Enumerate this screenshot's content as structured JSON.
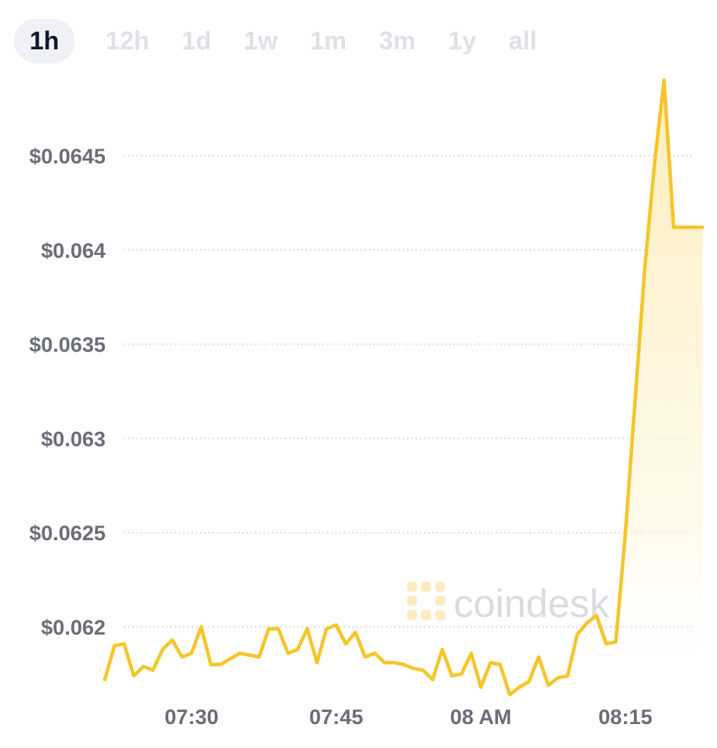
{
  "tabs": [
    {
      "label": "1h",
      "active": true
    },
    {
      "label": "12h",
      "active": false
    },
    {
      "label": "1d",
      "active": false
    },
    {
      "label": "1w",
      "active": false
    },
    {
      "label": "1m",
      "active": false
    },
    {
      "label": "3m",
      "active": false
    },
    {
      "label": "1y",
      "active": false
    },
    {
      "label": "all",
      "active": false
    }
  ],
  "watermark": "coindesk",
  "colors": {
    "line": "#f4c62c",
    "fill": "#fdf0c2",
    "grid": "#d4d6dc",
    "label": "#6b6e78"
  },
  "chart_data": {
    "type": "area",
    "x_ticks": [
      "07:30",
      "07:45",
      "08 AM",
      "08:15"
    ],
    "y_ticks": [
      "$0.0645",
      "$0.064",
      "$0.0635",
      "$0.063",
      "$0.0625",
      "$0.062"
    ],
    "y_tick_values": [
      0.0645,
      0.064,
      0.0635,
      0.063,
      0.0625,
      0.062
    ],
    "xlim": [
      "07:21",
      "08:23"
    ],
    "ylim": [
      0.06165,
      0.06492
    ],
    "grid": "horizontal-dotted",
    "x": [
      "07:21",
      "07:22",
      "07:23",
      "07:24",
      "07:25",
      "07:26",
      "07:27",
      "07:28",
      "07:29",
      "07:30",
      "07:31",
      "07:32",
      "07:33",
      "07:34",
      "07:35",
      "07:36",
      "07:37",
      "07:38",
      "07:39",
      "07:40",
      "07:41",
      "07:42",
      "07:43",
      "07:44",
      "07:45",
      "07:46",
      "07:47",
      "07:48",
      "07:49",
      "07:50",
      "07:51",
      "07:52",
      "07:53",
      "07:54",
      "07:55",
      "07:56",
      "07:57",
      "07:58",
      "07:59",
      "08:00",
      "08:01",
      "08:02",
      "08:03",
      "08:04",
      "08:05",
      "08:06",
      "08:07",
      "08:08",
      "08:09",
      "08:10",
      "08:11",
      "08:12",
      "08:13",
      "08:14",
      "08:15",
      "08:16",
      "08:17",
      "08:18",
      "08:19",
      "08:20",
      "08:21",
      "08:22",
      "08:23"
    ],
    "values": [
      0.06172,
      0.0619,
      0.06191,
      0.06174,
      0.06179,
      0.06177,
      0.06188,
      0.06193,
      0.06184,
      0.06186,
      0.062,
      0.0618,
      0.0618,
      0.06183,
      0.06186,
      0.06185,
      0.06184,
      0.06199,
      0.06199,
      0.06186,
      0.06188,
      0.06199,
      0.06181,
      0.06199,
      0.06201,
      0.06191,
      0.06197,
      0.06184,
      0.06186,
      0.06181,
      0.06181,
      0.0618,
      0.06178,
      0.06177,
      0.06172,
      0.06188,
      0.06174,
      0.06175,
      0.06186,
      0.06168,
      0.06181,
      0.0618,
      0.06164,
      0.06168,
      0.06171,
      0.06184,
      0.06169,
      0.06173,
      0.06174,
      0.06196,
      0.06202,
      0.06206,
      0.06191,
      0.06192,
      0.0625,
      0.0632,
      0.0639,
      0.06445,
      0.0649,
      0.06412,
      0.06412,
      0.06412,
      0.06412
    ]
  }
}
